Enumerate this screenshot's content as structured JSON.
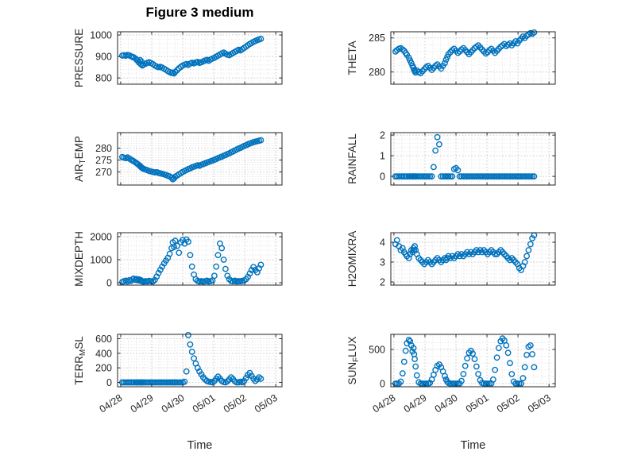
{
  "figure": {
    "title": "Figure 3 medium"
  },
  "style": {
    "marker_color": "#0072BD",
    "axis_color": "#262626",
    "text_color": "#262626",
    "grid_color": "#c7c7c7",
    "minor_grid_color": "#e2e2e2",
    "background": "#ffffff"
  },
  "chart_data": {
    "type": "scatter",
    "marker": "open-circle",
    "x_label": "Time",
    "x_tick_labels": [
      "04/28",
      "04/29",
      "04/30",
      "05/01",
      "05/02",
      "05/03"
    ],
    "x_tick_values": [
      0,
      1,
      2,
      3,
      4,
      5
    ],
    "x_unit": "days since 04/28",
    "xlim": [
      -0.1,
      5.2
    ],
    "x_minor_step": 0.25,
    "grid": "on",
    "minor_grid": "on",
    "shared_x": [
      0.05,
      0.1,
      0.16,
      0.22,
      0.28,
      0.33,
      0.38,
      0.42,
      0.48,
      0.52,
      0.56,
      0.6,
      0.63,
      0.65,
      0.67,
      0.7,
      0.74,
      0.8,
      0.86,
      0.92,
      0.98,
      1.04,
      1.1,
      1.16,
      1.22,
      1.28,
      1.34,
      1.4,
      1.46,
      1.52,
      1.58,
      1.64,
      1.68,
      1.72,
      1.76,
      1.82,
      1.88,
      1.94,
      2.0,
      2.06,
      2.12,
      2.18,
      2.24,
      2.3,
      2.36,
      2.42,
      2.48,
      2.54,
      2.6,
      2.66,
      2.72,
      2.78,
      2.84,
      2.9,
      2.96,
      3.02,
      3.08,
      3.14,
      3.2,
      3.26,
      3.32,
      3.38,
      3.44,
      3.5,
      3.56,
      3.62,
      3.68,
      3.74,
      3.8,
      3.86,
      3.92,
      3.98,
      4.04,
      4.1,
      4.16,
      4.22,
      4.28,
      4.34,
      4.4,
      4.46,
      4.52
    ],
    "charts": [
      {
        "id": "pressure",
        "ylabel": "PRESSURE",
        "ylabel_parts": [
          {
            "t": "PRESSURE"
          }
        ],
        "ylim": [
          771,
          1015
        ],
        "yticks": [
          800,
          900,
          1000
        ],
        "y_minor_step": 20,
        "y": [
          904,
          906,
          903,
          907,
          905,
          901,
          898,
          896,
          890,
          884,
          878,
          871,
          883,
          864,
          876,
          858,
          862,
          866,
          870,
          873,
          869,
          864,
          858,
          853,
          850,
          852,
          848,
          843,
          838,
          832,
          827,
          823,
          825,
          821,
          828,
          836,
          845,
          852,
          858,
          862,
          865,
          861,
          867,
          871,
          868,
          872,
          875,
          870,
          873,
          877,
          881,
          884,
          880,
          886,
          890,
          894,
          899,
          904,
          909,
          914,
          918,
          913,
          908,
          906,
          911,
          916,
          921,
          926,
          931,
          928,
          934,
          940,
          946,
          952,
          958,
          963,
          968,
          972,
          976,
          979,
          982
        ]
      },
      {
        "id": "theta",
        "ylabel": "THETA",
        "ylabel_parts": [
          {
            "t": "THETA"
          }
        ],
        "ylim": [
          278.2,
          285.9
        ],
        "yticks": [
          280,
          285
        ],
        "y_minor_step": 1,
        "y": [
          283.0,
          283.2,
          283.4,
          283.5,
          283.3,
          283.1,
          282.8,
          282.5,
          282.1,
          281.7,
          281.3,
          280.9,
          280.6,
          280.3,
          280.1,
          279.9,
          280.2,
          280.0,
          279.8,
          280.1,
          280.4,
          280.7,
          280.9,
          280.6,
          280.3,
          280.6,
          280.9,
          281.1,
          280.8,
          280.5,
          280.9,
          281.3,
          281.8,
          282.2,
          282.6,
          282.9,
          283.2,
          283.4,
          283.1,
          282.8,
          283.0,
          283.3,
          283.5,
          283.2,
          282.9,
          282.6,
          282.9,
          283.2,
          283.5,
          283.7,
          283.9,
          283.6,
          283.3,
          283.0,
          282.7,
          282.9,
          283.2,
          283.4,
          283.1,
          282.8,
          283.1,
          283.4,
          283.7,
          283.9,
          284.1,
          283.8,
          284.0,
          284.2,
          283.9,
          284.2,
          284.5,
          284.2,
          284.6,
          284.9,
          285.2,
          285.0,
          285.3,
          285.5,
          285.7,
          285.6,
          285.8
        ]
      },
      {
        "id": "air-temp",
        "ylabel": "AIR_TEMP",
        "ylabel_parts": [
          {
            "t": "AIR"
          },
          {
            "t": "T",
            "sub": true
          },
          {
            "t": "EMP"
          }
        ],
        "ylim": [
          264.5,
          286.5
        ],
        "yticks": [
          270,
          275,
          280
        ],
        "y_minor_step": 1,
        "y": [
          276.3,
          276.0,
          275.8,
          276.1,
          275.6,
          275.2,
          274.8,
          274.5,
          274.0,
          273.6,
          273.2,
          272.8,
          272.5,
          272.1,
          271.9,
          271.6,
          271.3,
          271.0,
          270.7,
          270.4,
          270.2,
          270.0,
          269.8,
          269.9,
          269.6,
          269.4,
          269.2,
          269.0,
          268.7,
          268.4,
          268.1,
          267.6,
          266.9,
          267.3,
          268.0,
          268.5,
          269.0,
          269.5,
          270.0,
          270.4,
          270.8,
          271.2,
          271.5,
          271.9,
          272.2,
          272.5,
          272.8,
          272.6,
          273.0,
          273.3,
          273.6,
          273.9,
          274.2,
          274.5,
          274.8,
          275.1,
          275.4,
          275.8,
          276.1,
          276.4,
          276.8,
          277.1,
          277.5,
          277.8,
          278.2,
          278.6,
          279.0,
          279.4,
          279.8,
          280.1,
          280.5,
          280.9,
          281.2,
          281.6,
          281.9,
          282.2,
          282.5,
          282.7,
          282.9,
          283.1,
          283.3
        ]
      },
      {
        "id": "rainfall",
        "ylabel": "RAINFALL",
        "ylabel_parts": [
          {
            "t": "RAINFALL"
          }
        ],
        "ylim": [
          -0.42,
          2.12
        ],
        "yticks": [
          0,
          1,
          2
        ],
        "y_minor_step": 0.2,
        "y": [
          0,
          0,
          0,
          0,
          0,
          0,
          0,
          0,
          0,
          0,
          0,
          0,
          0,
          0,
          0,
          0,
          0,
          0,
          0,
          0,
          0,
          0,
          0,
          0,
          0,
          0.45,
          1.25,
          1.9,
          1.55,
          0,
          0,
          0,
          0,
          0,
          0,
          0,
          0,
          0.35,
          0.4,
          0.3,
          0,
          0,
          0,
          0,
          0,
          0,
          0,
          0,
          0,
          0,
          0,
          0,
          0,
          0,
          0,
          0,
          0,
          0,
          0,
          0,
          0,
          0,
          0,
          0,
          0,
          0,
          0,
          0,
          0,
          0,
          0,
          0,
          0,
          0,
          0,
          0,
          0,
          0,
          0,
          0,
          0
        ]
      },
      {
        "id": "mixdepth",
        "ylabel": "MIXDEPTH",
        "ylabel_parts": [
          {
            "t": "MIXDEPTH"
          }
        ],
        "ylim": [
          -104,
          2172
        ],
        "yticks": [
          0,
          1000,
          2000
        ],
        "y_minor_step": 200,
        "y": [
          30,
          60,
          90,
          50,
          110,
          80,
          140,
          180,
          120,
          160,
          100,
          140,
          90,
          110,
          70,
          60,
          40,
          70,
          50,
          80,
          60,
          50,
          120,
          260,
          420,
          560,
          700,
          840,
          960,
          1080,
          1250,
          1500,
          1750,
          1550,
          1820,
          1600,
          1300,
          1750,
          1850,
          1700,
          1880,
          1780,
          1200,
          700,
          350,
          150,
          80,
          50,
          70,
          40,
          60,
          90,
          50,
          70,
          100,
          300,
          700,
          1200,
          1700,
          1500,
          1000,
          600,
          300,
          150,
          80,
          60,
          90,
          50,
          70,
          60,
          80,
          100,
          150,
          250,
          400,
          550,
          680,
          550,
          450,
          620,
          780
        ]
      },
      {
        "id": "h2omixra",
        "ylabel": "H2OMIXRA",
        "ylabel_parts": [
          {
            "t": "H2OMIXRA"
          }
        ],
        "ylim": [
          1.84,
          4.48
        ],
        "yticks": [
          2,
          3,
          4
        ],
        "y_minor_step": 0.2,
        "y": [
          3.9,
          4.1,
          3.8,
          3.6,
          3.7,
          3.5,
          3.4,
          3.3,
          3.2,
          3.4,
          3.6,
          3.5,
          3.7,
          3.6,
          3.8,
          3.6,
          3.4,
          3.2,
          3.1,
          3.0,
          2.9,
          3.0,
          3.1,
          3.0,
          2.9,
          3.0,
          3.1,
          3.2,
          3.1,
          3.0,
          3.1,
          3.2,
          3.1,
          3.2,
          3.3,
          3.2,
          3.3,
          3.2,
          3.3,
          3.4,
          3.3,
          3.4,
          3.3,
          3.4,
          3.5,
          3.4,
          3.5,
          3.4,
          3.5,
          3.6,
          3.5,
          3.6,
          3.5,
          3.6,
          3.5,
          3.4,
          3.5,
          3.6,
          3.5,
          3.4,
          3.4,
          3.5,
          3.6,
          3.5,
          3.4,
          3.3,
          3.2,
          3.1,
          3.2,
          3.1,
          3.0,
          2.9,
          2.7,
          2.6,
          2.8,
          3.0,
          3.3,
          3.6,
          3.9,
          4.2,
          4.35
        ]
      },
      {
        "id": "terr-msl",
        "ylabel": "TERR_MSL",
        "ylabel_parts": [
          {
            "t": "TERR"
          },
          {
            "t": "M",
            "sub": true
          },
          {
            "t": "SL"
          }
        ],
        "ylim": [
          -60,
          660
        ],
        "yticks": [
          0,
          200,
          400,
          600
        ],
        "y_minor_step": 40,
        "y": [
          0,
          0,
          0,
          0,
          0,
          0,
          0,
          0,
          0,
          0,
          0,
          0,
          0,
          0,
          0,
          0,
          0,
          0,
          0,
          0,
          0,
          0,
          0,
          0,
          0,
          0,
          0,
          0,
          0,
          0,
          0,
          0,
          0,
          0,
          0,
          0,
          0,
          0,
          0,
          10,
          150,
          650,
          520,
          420,
          330,
          260,
          200,
          150,
          110,
          70,
          40,
          20,
          10,
          5,
          0,
          20,
          50,
          80,
          50,
          20,
          5,
          0,
          15,
          40,
          70,
          45,
          15,
          0,
          0,
          10,
          0,
          20,
          60,
          100,
          130,
          90,
          50,
          20,
          40,
          70,
          50
        ]
      },
      {
        "id": "sun-flux",
        "ylabel": "SUN_FLUX",
        "ylabel_parts": [
          {
            "t": "SUN"
          },
          {
            "t": "F",
            "sub": true
          },
          {
            "t": "LUX"
          }
        ],
        "ylim": [
          -46,
          721
        ],
        "yticks": [
          0,
          500
        ],
        "y_minor_step": 100,
        "y": [
          0,
          0,
          0,
          30,
          150,
          320,
          480,
          590,
          640,
          620,
          560,
          470,
          520,
          430,
          360,
          250,
          120,
          20,
          0,
          0,
          0,
          0,
          0,
          10,
          60,
          130,
          200,
          260,
          280,
          240,
          180,
          110,
          60,
          30,
          10,
          0,
          0,
          0,
          0,
          0,
          0,
          40,
          140,
          260,
          370,
          450,
          480,
          440,
          360,
          250,
          140,
          50,
          10,
          0,
          0,
          0,
          0,
          0,
          60,
          200,
          380,
          520,
          620,
          660,
          630,
          560,
          450,
          300,
          140,
          30,
          0,
          0,
          0,
          0,
          80,
          240,
          420,
          540,
          560,
          430,
          240
        ]
      }
    ]
  }
}
